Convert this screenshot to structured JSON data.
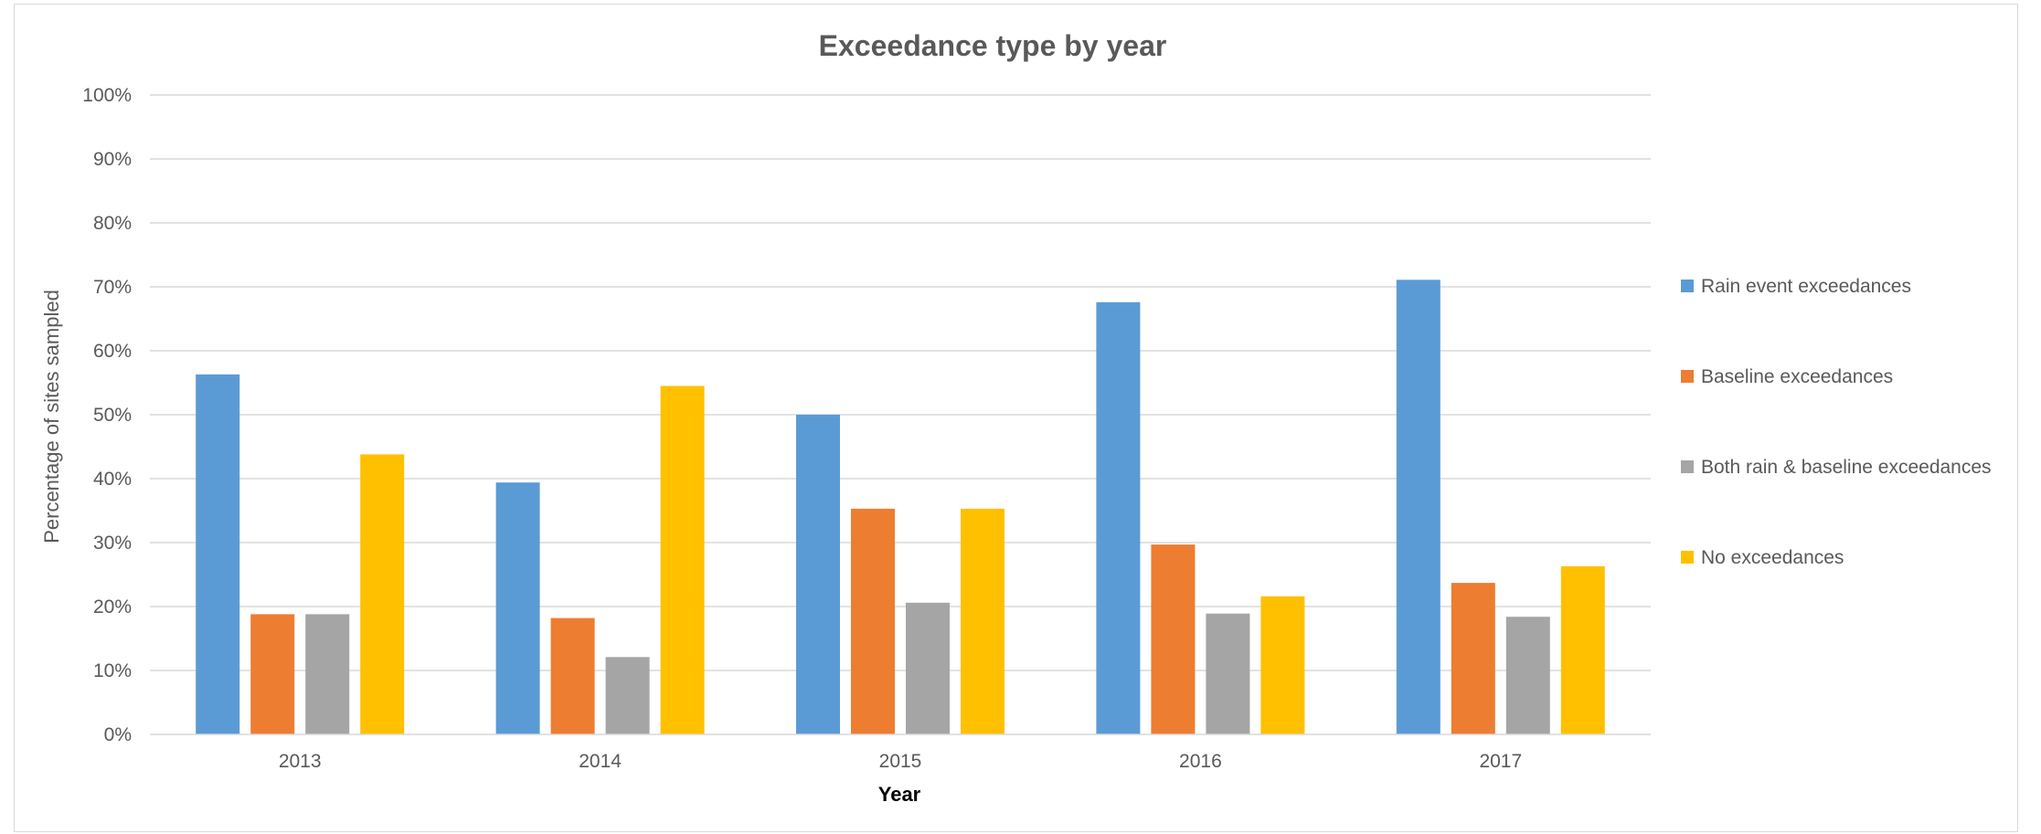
{
  "chart_data": {
    "type": "bar",
    "title": "Exceedance type by year",
    "xlabel": "Year",
    "ylabel": "Percentage of sites sampled",
    "categories": [
      "2013",
      "2014",
      "2015",
      "2016",
      "2017"
    ],
    "y_ticks": [
      "0%",
      "10%",
      "20%",
      "30%",
      "40%",
      "50%",
      "60%",
      "70%",
      "80%",
      "90%",
      "100%"
    ],
    "ylim": [
      0,
      100
    ],
    "grid": true,
    "legend_position": "right",
    "series": [
      {
        "name": "Rain event exceedances",
        "color": "#5b9bd5",
        "values": [
          56.3,
          39.4,
          50.0,
          67.6,
          71.1
        ]
      },
      {
        "name": "Baseline exceedances",
        "color": "#ed7d31",
        "values": [
          18.8,
          18.2,
          35.3,
          29.7,
          23.7
        ]
      },
      {
        "name": "Both rain & baseline exceedances",
        "color": "#a5a5a5",
        "values": [
          18.8,
          12.1,
          20.6,
          18.9,
          18.4
        ]
      },
      {
        "name": "No exceedances",
        "color": "#ffc000",
        "values": [
          43.8,
          54.5,
          35.3,
          21.6,
          26.3
        ]
      }
    ]
  }
}
